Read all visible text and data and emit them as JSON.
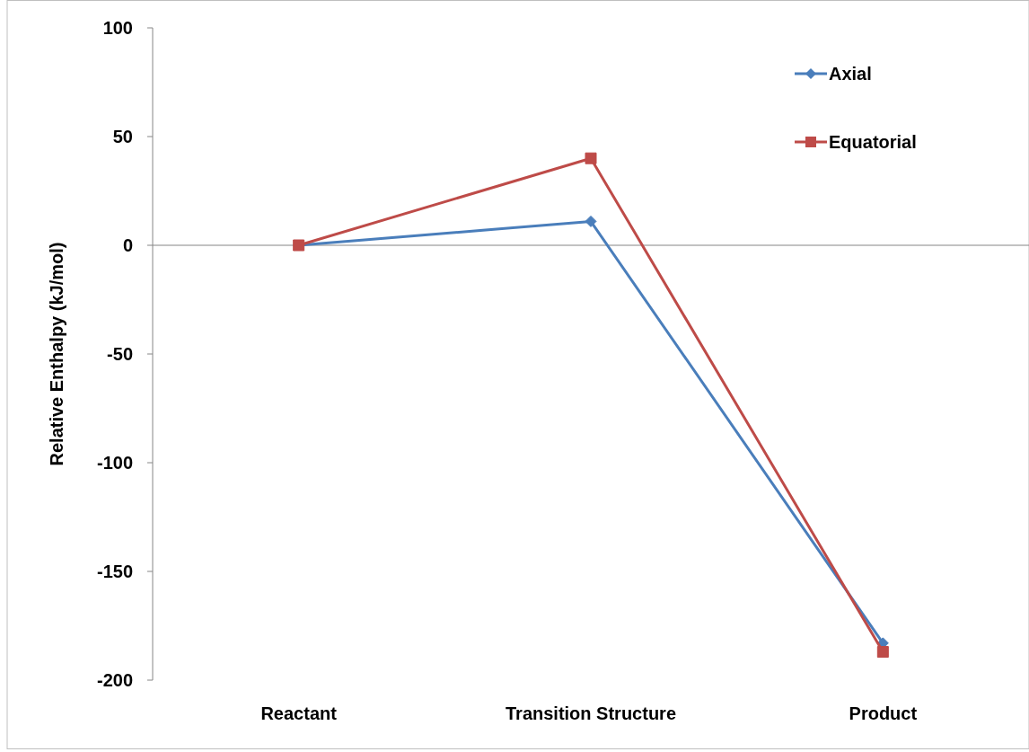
{
  "chart_data": {
    "type": "line",
    "ylabel": "Relative Enthalpy (kJ/mol)",
    "categories": [
      "Reactant",
      "Transition Structure",
      "Product"
    ],
    "series": [
      {
        "name": "Axial",
        "color": "#4a7ebb",
        "values": [
          0,
          11,
          -183
        ],
        "marker": "diamond"
      },
      {
        "name": "Equatorial",
        "color": "#be4b48",
        "values": [
          0,
          40,
          -187
        ],
        "marker": "square"
      }
    ],
    "ylim": [
      -200,
      100
    ],
    "yticks": [
      -200,
      -150,
      -100,
      -50,
      0,
      50,
      100
    ],
    "ref_lines": [
      {
        "axis": "y",
        "value": 0,
        "color": "#868686"
      }
    ],
    "legend": "top right",
    "line_style": "solid"
  }
}
